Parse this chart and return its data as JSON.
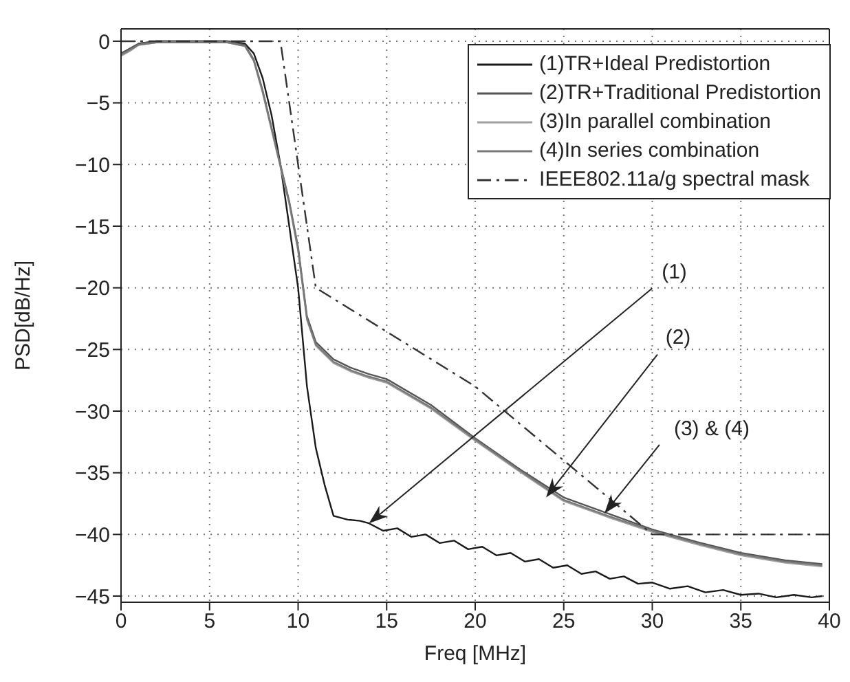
{
  "chart_data": {
    "type": "line",
    "xlabel": "Freq [MHz]",
    "ylabel": "PSD[dB/Hz]",
    "xlim": [
      0,
      40
    ],
    "ylim": [
      -45.5,
      1
    ],
    "xticks": [
      0,
      5,
      10,
      15,
      20,
      25,
      30,
      35,
      40
    ],
    "yticks": [
      -45,
      -40,
      -35,
      -30,
      -25,
      -20,
      -15,
      -10,
      -5,
      0
    ],
    "grid": true,
    "legend": "top right",
    "series": [
      {
        "name": "(1)TR+Ideal Predistortion",
        "color": "#1a1a1a",
        "line_style": "solid",
        "x": [
          0,
          0.5,
          1,
          2,
          4,
          6,
          7,
          7.5,
          8,
          8.5,
          9,
          9.5,
          10,
          10.5,
          11,
          11.5,
          12,
          12.8,
          13.5,
          14,
          14.8,
          15.6,
          16.4,
          17.2,
          18,
          18.8,
          19.6,
          20.4,
          21.2,
          22,
          22.8,
          23.6,
          24.4,
          25.2,
          26,
          26.8,
          27.6,
          28.4,
          29.2,
          30,
          31,
          32,
          33,
          34,
          35,
          36,
          37,
          38,
          39,
          39.6
        ],
        "values": [
          -1,
          -0.6,
          -0.2,
          0,
          0,
          0,
          -0.2,
          -1,
          -3,
          -6,
          -10,
          -15,
          -20,
          -28,
          -33,
          -36,
          -38.5,
          -38.8,
          -38.9,
          -39.1,
          -39.7,
          -39.5,
          -40.2,
          -40,
          -40.7,
          -40.5,
          -41.2,
          -41,
          -41.7,
          -41.5,
          -42.2,
          -42,
          -42.7,
          -42.5,
          -43.2,
          -43,
          -43.6,
          -43.4,
          -44,
          -43.9,
          -44.4,
          -44.2,
          -44.7,
          -44.5,
          -44.9,
          -44.8,
          -45.1,
          -44.9,
          -45.1,
          -45
        ]
      },
      {
        "name": "(2)TR+Traditional Predistortion",
        "color": "#555555",
        "line_style": "solid",
        "x": [
          0,
          0.5,
          1,
          2,
          4,
          6,
          7,
          7.5,
          8,
          8.5,
          9,
          9.5,
          10,
          10.5,
          11,
          12,
          13,
          14,
          15,
          17.5,
          20,
          22.5,
          25,
          27.5,
          30,
          32.5,
          35,
          37.5,
          39.6
        ],
        "values": [
          -1,
          -0.6,
          -0.2,
          0,
          0,
          0,
          -0.3,
          -1.5,
          -4,
          -7,
          -10,
          -13,
          -16.7,
          -22.3,
          -24.4,
          -25.8,
          -26.5,
          -27,
          -27.4,
          -29.5,
          -32.2,
          -34.7,
          -37,
          -38.3,
          -39.6,
          -40.6,
          -41.5,
          -42.1,
          -42.4
        ]
      },
      {
        "name": "(3)In parallel combination",
        "color": "#a0a0a0",
        "line_style": "solid",
        "x": [
          0,
          0.5,
          1,
          2,
          4,
          6,
          7,
          7.5,
          8,
          8.5,
          9,
          9.5,
          10,
          10.5,
          11,
          12,
          13,
          14,
          15,
          17.5,
          20,
          22.5,
          25,
          27.5,
          30,
          32.5,
          35,
          37.5,
          39.6
        ],
        "values": [
          -1.2,
          -0.8,
          -0.3,
          -0.1,
          -0.1,
          -0.1,
          -0.4,
          -1.6,
          -4.2,
          -7.2,
          -10.2,
          -13.2,
          -17,
          -22.6,
          -24.7,
          -26.1,
          -26.8,
          -27.3,
          -27.7,
          -29.8,
          -32.4,
          -34.9,
          -37.3,
          -38.6,
          -39.8,
          -40.8,
          -41.7,
          -42.3,
          -42.6
        ]
      },
      {
        "name": "(4)In series combination",
        "color": "#787878",
        "line_style": "solid",
        "x": [
          0,
          0.5,
          1,
          2,
          4,
          6,
          7,
          7.5,
          8,
          8.5,
          9,
          9.5,
          10,
          10.5,
          11,
          12,
          13,
          14,
          15,
          17.5,
          20,
          22.5,
          25,
          27.5,
          30,
          32.5,
          35,
          37.5,
          39.6
        ],
        "values": [
          -1.1,
          -0.7,
          -0.3,
          -0.1,
          -0.1,
          -0.1,
          -0.4,
          -1.6,
          -4.1,
          -7.1,
          -10.1,
          -13.1,
          -16.9,
          -22.5,
          -24.6,
          -26,
          -26.7,
          -27.2,
          -27.6,
          -29.7,
          -32.3,
          -34.8,
          -37.2,
          -38.5,
          -39.7,
          -40.7,
          -41.6,
          -42.2,
          -42.5
        ]
      },
      {
        "name": "IEEE802.11a/g spectral mask",
        "color": "#333333",
        "line_style": "dashdot",
        "x": [
          0,
          9,
          11,
          20,
          30,
          40
        ],
        "values": [
          0,
          0,
          -20,
          -28,
          -40,
          -40
        ]
      }
    ],
    "annotations": [
      {
        "text": "(1)",
        "x": 14,
        "y": -39.1
      },
      {
        "text": "(2)",
        "x": 24,
        "y": -37
      },
      {
        "text": "(3) & (4)",
        "x": 27.3,
        "y": -38.3
      }
    ]
  }
}
